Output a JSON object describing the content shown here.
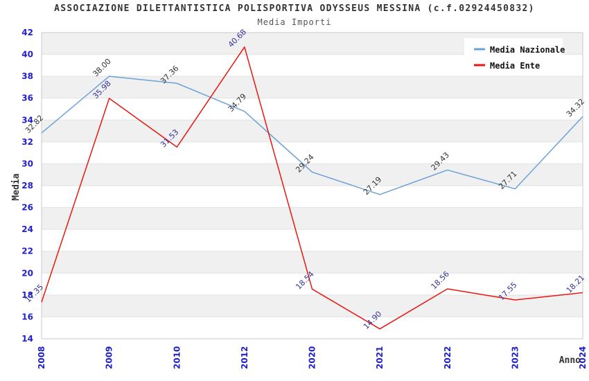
{
  "chart_data": {
    "type": "line",
    "title": "ASSOCIAZIONE DILETTANTISTICA POLISPORTIVA ODYSSEUS MESSINA (c.f.02924450832)",
    "subtitle": "Media Importi",
    "xlabel": "Anno",
    "ylabel": "Media",
    "ylim": [
      14,
      42
    ],
    "ytick_step": 2,
    "grid": "horizontal-lines-with-alternating-bands",
    "legend_position": "top-right",
    "categories": [
      "2008",
      "2009",
      "2010",
      "2012",
      "2020",
      "2021",
      "2022",
      "2023",
      "2024"
    ],
    "series": [
      {
        "name": "Media Nazionale",
        "color": "#69a1d8",
        "label_color": "#333333",
        "values": [
          32.82,
          38.0,
          37.36,
          34.79,
          29.24,
          27.19,
          29.43,
          27.71,
          34.32
        ]
      },
      {
        "name": "Media Ente",
        "color": "#e8170f",
        "label_color": "#333399",
        "values": [
          17.35,
          35.98,
          31.53,
          40.68,
          18.54,
          14.9,
          18.56,
          17.55,
          18.21
        ]
      }
    ],
    "colors": {
      "title": "#333333",
      "subtitle": "#555555",
      "tick_label": "#2020cc",
      "axis_title": "#333333",
      "band_fill": "#f0f0f0",
      "grid_line": "#e2e2e2",
      "plot_border": "#c9c9c9",
      "legend_bg": "#ffffff",
      "legend_text": "#111111"
    }
  }
}
